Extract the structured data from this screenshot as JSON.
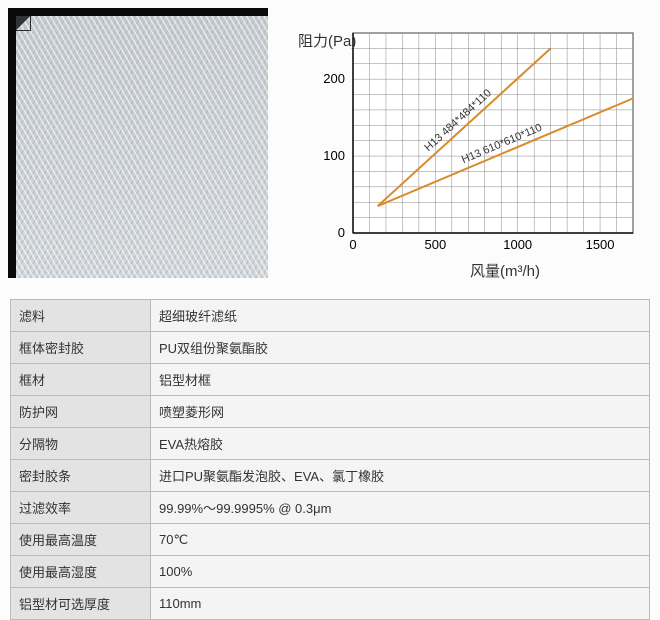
{
  "chart": {
    "type": "line",
    "y_label": "阻力(Pa)",
    "x_label": "风量(m³/h)",
    "background_color": "#ffffff",
    "grid_color": "#888888",
    "axis_color": "#000000",
    "x_min": 0,
    "x_max": 1700,
    "y_min": 0,
    "y_max": 260,
    "x_ticks": [
      0,
      500,
      1000,
      1500
    ],
    "y_ticks": [
      0,
      100,
      200
    ],
    "x_grid_step": 100,
    "y_grid_step": 20,
    "label_fontsize": 15,
    "tick_fontsize": 13,
    "series": [
      {
        "label": "H13 484*484*110",
        "color": "#d98a2b",
        "line_width": 2,
        "points": [
          [
            150,
            35
          ],
          [
            1200,
            240
          ]
        ]
      },
      {
        "label": "H13 610*610*110",
        "color": "#d98a2b",
        "line_width": 2,
        "points": [
          [
            150,
            35
          ],
          [
            1700,
            175
          ]
        ]
      }
    ]
  },
  "table": {
    "rows": [
      {
        "key": "滤料",
        "val": "超细玻纤滤纸"
      },
      {
        "key": "框体密封胶",
        "val": "PU双组份聚氨酯胶"
      },
      {
        "key": "框材",
        "val": "铝型材框"
      },
      {
        "key": "防护网",
        "val": "喷塑菱形网"
      },
      {
        "key": "分隔物",
        "val": "EVA热熔胶"
      },
      {
        "key": "密封胶条",
        "val": "进口PU聚氨酯发泡胶、EVA、氯丁橡胶"
      },
      {
        "key": "过滤效率",
        "val": "99.99%～99.9995% @ 0.3μm"
      },
      {
        "key": "使用最高温度",
        "val": "70℃"
      },
      {
        "key": "使用最高湿度",
        "val": "100%"
      },
      {
        "key": "铝型材可选厚度",
        "val": "110mm"
      }
    ]
  }
}
